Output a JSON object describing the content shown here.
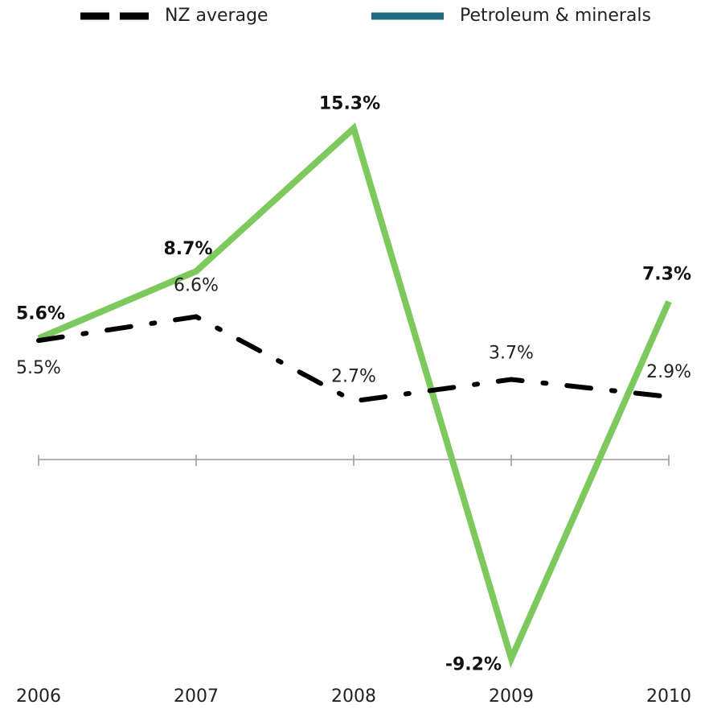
{
  "chart_data": {
    "type": "line",
    "categories": [
      "2006",
      "2007",
      "2008",
      "2009",
      "2010"
    ],
    "series": [
      {
        "name": "Petroleum & minerals",
        "color": "#7dc95e",
        "legend_color": "#1c6b7c",
        "values": [
          5.6,
          8.7,
          15.3,
          -9.2,
          7.3
        ],
        "value_labels": [
          "5.6%",
          "8.7%",
          "15.3%",
          "-9.2%",
          "7.3%"
        ]
      },
      {
        "name": "NZ average",
        "color": "#000000",
        "legend_color": "#000000",
        "values": [
          5.5,
          6.6,
          2.7,
          3.7,
          2.9
        ],
        "value_labels": [
          "5.5%",
          "6.6%",
          "2.7%",
          "3.7%",
          "2.9%"
        ]
      }
    ],
    "ylim": [
      -10,
      19
    ]
  }
}
